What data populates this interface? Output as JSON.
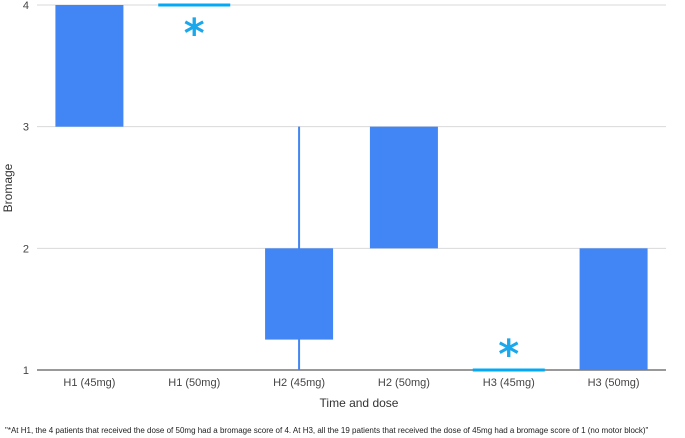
{
  "chart_data": {
    "type": "candlestick",
    "xlabel": "Time and dose",
    "ylabel": "Bromage",
    "ylim": [
      1,
      4
    ],
    "yticks": [
      1,
      2,
      3,
      4
    ],
    "grid": true,
    "categories": [
      "H1 (45mg)",
      "H1 (50mg)",
      "H2 (45mg)",
      "H2 (50mg)",
      "H3 (45mg)",
      "H3 (50mg)"
    ],
    "boxes": [
      {
        "category": "H1 (45mg)",
        "low": 3,
        "high": 4,
        "whisker_low": 3,
        "whisker_high": 4
      },
      {
        "category": "H1 (50mg)",
        "low": 4,
        "high": 4,
        "whisker_low": 4,
        "whisker_high": 4,
        "marker": "*"
      },
      {
        "category": "H2 (45mg)",
        "low": 1.25,
        "high": 2,
        "whisker_low": 1,
        "whisker_high": 3
      },
      {
        "category": "H2 (50mg)",
        "low": 2,
        "high": 3,
        "whisker_low": 2,
        "whisker_high": 3
      },
      {
        "category": "H3 (45mg)",
        "low": 1,
        "high": 1,
        "whisker_low": 1,
        "whisker_high": 1,
        "marker": "*"
      },
      {
        "category": "H3 (50mg)",
        "low": 1,
        "high": 2,
        "whisker_low": 1,
        "whisker_high": 2
      }
    ],
    "footnote": "\"*At H1, the 4 patients that received the dose of 50mg had a bromage score of 4. At H3, all the 19 patients that received the dose of 45mg had a bromage score of 1 (no motor block)\"",
    "colors": {
      "box": "#4285f4",
      "marker_line": "#03a9f4",
      "marker_star": "#1aa7ec",
      "grid": "#d9d9d9"
    }
  }
}
